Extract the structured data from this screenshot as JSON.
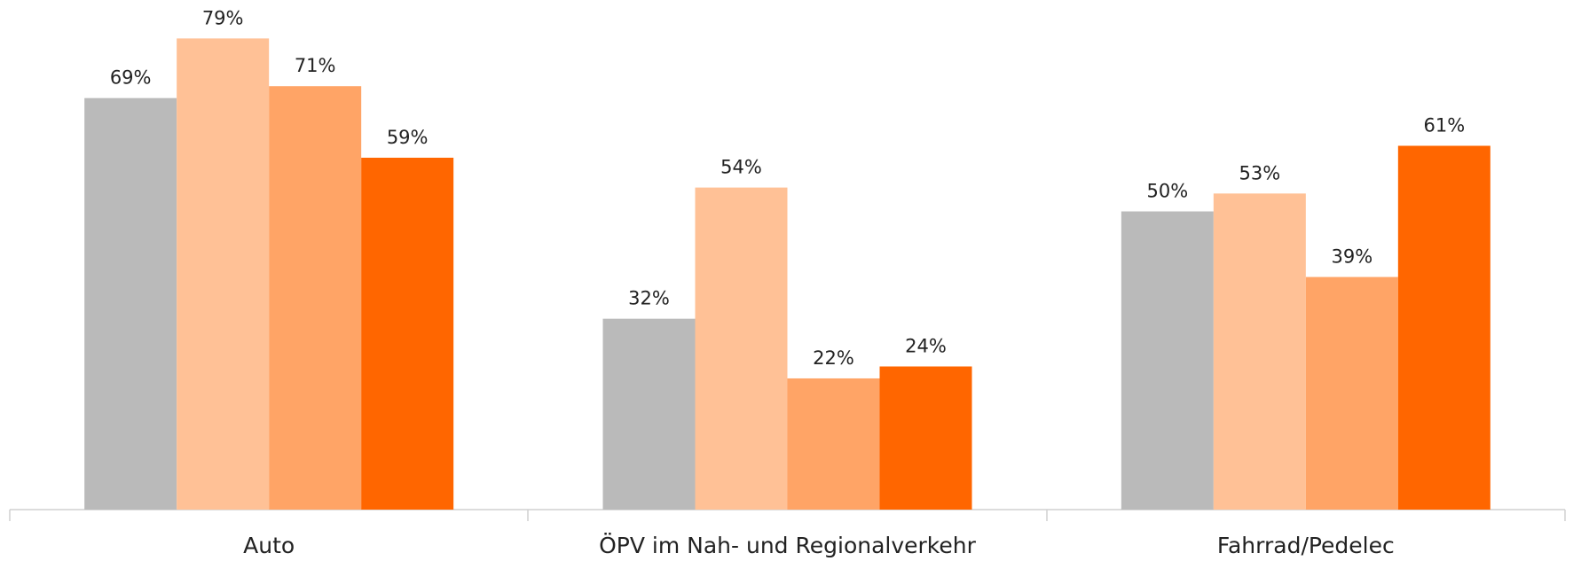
{
  "chart_data": {
    "type": "bar",
    "categories": [
      "Auto",
      "ÖPV im Nah- und Regionalverkehr",
      "Fahrrad/Pedelec"
    ],
    "series": [
      {
        "color": "#bababa",
        "values": [
          69,
          32,
          50
        ],
        "value_labels": [
          "69%",
          "32%",
          "50%"
        ]
      },
      {
        "color": "#ffc196",
        "values": [
          79,
          54,
          53
        ],
        "value_labels": [
          "79%",
          "54%",
          "53%"
        ]
      },
      {
        "color": "#ffa466",
        "values": [
          71,
          22,
          39
        ],
        "value_labels": [
          "71%",
          "22%",
          "39%"
        ]
      },
      {
        "color": "#ff6600",
        "values": [
          59,
          24,
          61
        ],
        "value_labels": [
          "59%",
          "24%",
          "61%"
        ]
      }
    ],
    "ylim": [
      0,
      85
    ]
  }
}
